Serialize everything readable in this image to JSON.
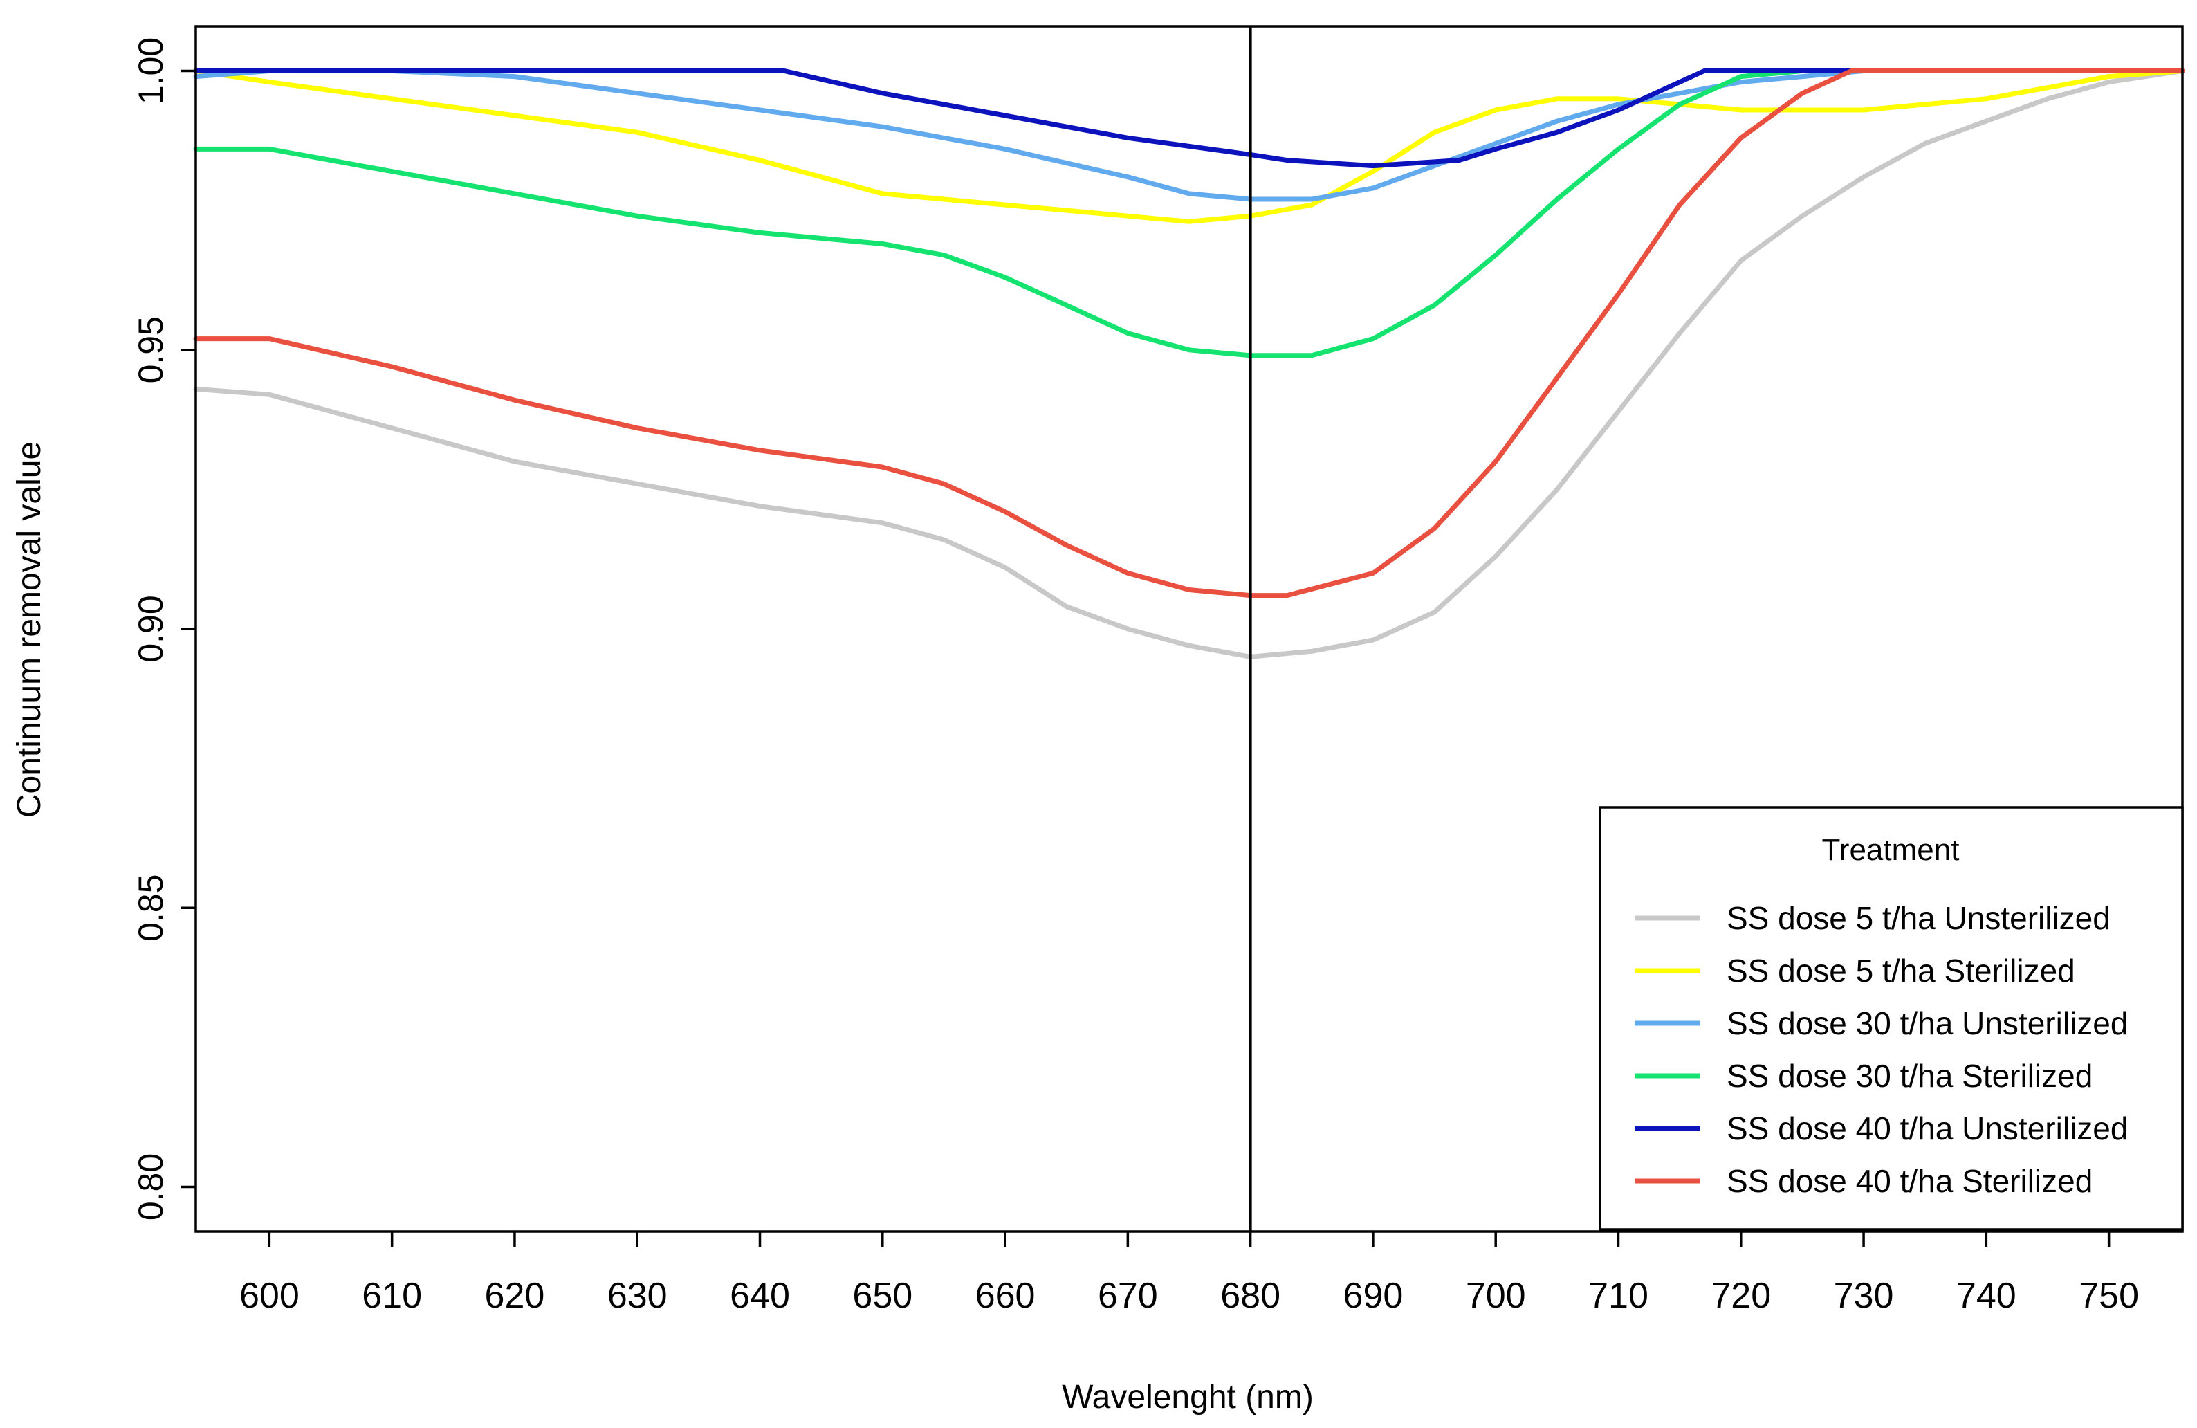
{
  "chart_data": {
    "type": "line",
    "title": "",
    "xlabel": "Wavelenght (nm)",
    "ylabel": "Continuum removal value",
    "xlim": [
      594,
      756
    ],
    "ylim": [
      0.792,
      1.008
    ],
    "x_ticks": [
      600,
      610,
      620,
      630,
      640,
      650,
      660,
      670,
      680,
      690,
      700,
      710,
      720,
      730,
      740,
      750
    ],
    "y_ticks": [
      0.8,
      0.85,
      0.9,
      0.95,
      1.0
    ],
    "y_tick_labels": [
      "0.80",
      "0.85",
      "0.90",
      "0.95",
      "1.00"
    ],
    "vline_x": 680,
    "legend": {
      "title": "Treatment",
      "position": "bottom-right"
    },
    "grid": false,
    "series": [
      {
        "name": "SS dose 5 t/ha Unsterilized",
        "color": "#c8c8c8",
        "x": [
          594,
          600,
          610,
          620,
          630,
          640,
          650,
          655,
          660,
          665,
          670,
          675,
          680,
          685,
          690,
          695,
          700,
          705,
          710,
          715,
          720,
          725,
          730,
          735,
          740,
          745,
          750,
          756
        ],
        "y": [
          0.943,
          0.942,
          0.936,
          0.93,
          0.926,
          0.922,
          0.919,
          0.916,
          0.911,
          0.904,
          0.9,
          0.897,
          0.895,
          0.896,
          0.898,
          0.903,
          0.913,
          0.925,
          0.939,
          0.953,
          0.966,
          0.974,
          0.981,
          0.987,
          0.991,
          0.995,
          0.998,
          1.0
        ]
      },
      {
        "name": "SS dose 5 t/ha Sterilized",
        "color": "#ffff00",
        "x": [
          594,
          600,
          610,
          620,
          630,
          640,
          650,
          660,
          670,
          675,
          680,
          685,
          690,
          695,
          700,
          705,
          710,
          715,
          720,
          725,
          730,
          735,
          740,
          745,
          750,
          756
        ],
        "y": [
          1.0,
          0.998,
          0.995,
          0.992,
          0.989,
          0.984,
          0.978,
          0.976,
          0.974,
          0.973,
          0.974,
          0.976,
          0.982,
          0.989,
          0.993,
          0.995,
          0.995,
          0.994,
          0.993,
          0.993,
          0.993,
          0.994,
          0.995,
          0.997,
          0.999,
          1.0
        ]
      },
      {
        "name": "SS dose 30 t/ha Unsterilized",
        "color": "#62aaee",
        "x": [
          594,
          600,
          610,
          620,
          630,
          640,
          650,
          660,
          670,
          675,
          680,
          685,
          690,
          695,
          700,
          705,
          710,
          715,
          720,
          725,
          730,
          735,
          740,
          745,
          750,
          756
        ],
        "y": [
          0.999,
          1.0,
          1.0,
          0.999,
          0.996,
          0.993,
          0.99,
          0.986,
          0.981,
          0.978,
          0.977,
          0.977,
          0.979,
          0.983,
          0.987,
          0.991,
          0.994,
          0.996,
          0.998,
          0.999,
          1.0,
          1.0,
          1.0,
          1.0,
          1.0,
          1.0
        ]
      },
      {
        "name": "SS dose 30 t/ha Sterilized",
        "color": "#14e370",
        "x": [
          594,
          600,
          610,
          620,
          630,
          640,
          650,
          655,
          660,
          665,
          670,
          675,
          680,
          685,
          690,
          695,
          700,
          705,
          710,
          715,
          720,
          725,
          730,
          740,
          750,
          756
        ],
        "y": [
          0.986,
          0.986,
          0.982,
          0.978,
          0.974,
          0.971,
          0.969,
          0.967,
          0.963,
          0.958,
          0.953,
          0.95,
          0.949,
          0.949,
          0.952,
          0.958,
          0.967,
          0.977,
          0.986,
          0.994,
          0.999,
          1.0,
          1.0,
          1.0,
          1.0,
          1.0
        ]
      },
      {
        "name": "SS dose 40 t/ha Unsterilized",
        "color": "#0c12bc",
        "x": [
          594,
          600,
          610,
          620,
          630,
          640,
          642,
          650,
          660,
          670,
          680,
          683,
          690,
          697,
          700,
          705,
          710,
          714,
          717,
          720,
          730,
          740,
          750,
          756
        ],
        "y": [
          1.0,
          1.0,
          1.0,
          1.0,
          1.0,
          1.0,
          1.0,
          0.996,
          0.992,
          0.988,
          0.985,
          0.984,
          0.983,
          0.984,
          0.986,
          0.989,
          0.993,
          0.997,
          1.0,
          1.0,
          1.0,
          1.0,
          1.0,
          1.0
        ]
      },
      {
        "name": "SS dose 40 t/ha Sterilized",
        "color": "#ea5040",
        "x": [
          594,
          600,
          610,
          620,
          630,
          640,
          650,
          655,
          660,
          665,
          670,
          675,
          680,
          683,
          690,
          695,
          700,
          705,
          710,
          715,
          720,
          725,
          729,
          735,
          740,
          750,
          756
        ],
        "y": [
          0.952,
          0.952,
          0.947,
          0.941,
          0.936,
          0.932,
          0.929,
          0.926,
          0.921,
          0.915,
          0.91,
          0.907,
          0.906,
          0.906,
          0.91,
          0.918,
          0.93,
          0.945,
          0.96,
          0.976,
          0.988,
          0.996,
          1.0,
          1.0,
          1.0,
          1.0,
          1.0
        ]
      }
    ]
  }
}
